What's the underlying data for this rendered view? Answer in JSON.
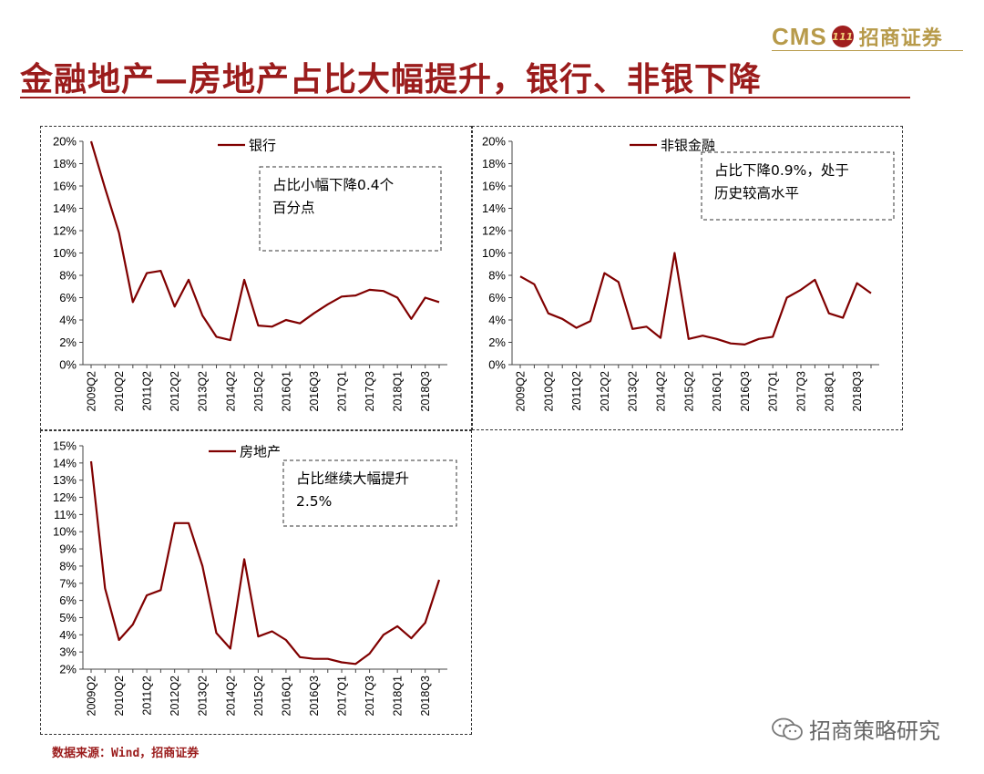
{
  "brand": {
    "cms": "CMS",
    "badge": "111",
    "name": "招商证券"
  },
  "title": "金融地产—房地产占比大幅提升，银行、非银下降",
  "source": "数据来源：Wind，招商证券",
  "watermark": "招商策略研究",
  "colors": {
    "series": "#800000",
    "title": "#9b1c1c",
    "brand_gold": "#b79a4a"
  },
  "chart_data": [
    {
      "type": "line",
      "legend": "银行",
      "annotation": [
        "占比小幅下降0.4个",
        "百分点"
      ],
      "y_ticks": [
        "0%",
        "2%",
        "4%",
        "6%",
        "8%",
        "10%",
        "12%",
        "14%",
        "16%",
        "18%",
        "20%"
      ],
      "ylim": [
        0,
        20
      ],
      "x_tick_labels": [
        "2009Q2",
        "2010Q2",
        "2011Q2",
        "2012Q2",
        "2013Q2",
        "2014Q2",
        "2015Q2",
        "2016Q1",
        "2016Q3",
        "2017Q1",
        "2017Q3",
        "2018Q1",
        "2018Q3"
      ],
      "x": [
        "2009Q2",
        "2009Q4",
        "2010Q2",
        "2010Q4",
        "2011Q2",
        "2011Q4",
        "2012Q2",
        "2012Q4",
        "2013Q2",
        "2013Q4",
        "2014Q2",
        "2014Q4",
        "2015Q2",
        "2015Q4",
        "2016Q1",
        "2016Q2",
        "2016Q3",
        "2016Q4",
        "2017Q1",
        "2017Q2",
        "2017Q3",
        "2017Q4",
        "2018Q1",
        "2018Q2",
        "2018Q3",
        "2018Q4"
      ],
      "values": [
        20.0,
        15.8,
        11.8,
        5.6,
        8.2,
        8.4,
        5.2,
        7.6,
        4.4,
        2.5,
        2.2,
        7.6,
        3.5,
        3.4,
        4.0,
        3.7,
        4.6,
        5.4,
        6.1,
        6.2,
        6.7,
        6.6,
        6.0,
        4.1,
        6.0,
        5.6
      ]
    },
    {
      "type": "line",
      "legend": "非银金融",
      "annotation": [
        "占比下降0.9%，处于",
        "历史较高水平"
      ],
      "y_ticks": [
        "0%",
        "2%",
        "4%",
        "6%",
        "8%",
        "10%",
        "12%",
        "14%",
        "16%",
        "18%",
        "20%"
      ],
      "ylim": [
        0,
        20
      ],
      "x_tick_labels": [
        "2009Q2",
        "2010Q2",
        "2011Q2",
        "2012Q2",
        "2013Q2",
        "2014Q2",
        "2015Q2",
        "2016Q1",
        "2016Q3",
        "2017Q1",
        "2017Q3",
        "2018Q1",
        "2018Q3"
      ],
      "x": [
        "2009Q2",
        "2009Q4",
        "2010Q2",
        "2010Q4",
        "2011Q2",
        "2011Q4",
        "2012Q2",
        "2012Q4",
        "2013Q2",
        "2013Q4",
        "2014Q2",
        "2014Q4",
        "2015Q2",
        "2015Q4",
        "2016Q1",
        "2016Q2",
        "2016Q3",
        "2016Q4",
        "2017Q1",
        "2017Q2",
        "2017Q3",
        "2017Q4",
        "2018Q1",
        "2018Q2",
        "2018Q3",
        "2018Q4"
      ],
      "values": [
        7.9,
        7.2,
        4.6,
        4.1,
        3.3,
        3.9,
        8.2,
        7.4,
        3.2,
        3.4,
        2.4,
        10.0,
        2.3,
        2.6,
        2.3,
        1.9,
        1.8,
        2.3,
        2.5,
        6.0,
        6.7,
        7.6,
        4.6,
        4.2,
        7.3,
        6.4
      ]
    },
    {
      "type": "line",
      "legend": "房地产",
      "annotation": [
        "占比继续大幅提升",
        "2.5%"
      ],
      "y_ticks": [
        "2%",
        "3%",
        "4%",
        "5%",
        "6%",
        "7%",
        "8%",
        "9%",
        "10%",
        "11%",
        "12%",
        "13%",
        "14%",
        "15%"
      ],
      "ylim": [
        2,
        15
      ],
      "x_tick_labels": [
        "2009Q2",
        "2010Q2",
        "2011Q2",
        "2012Q2",
        "2013Q2",
        "2014Q2",
        "2015Q2",
        "2016Q1",
        "2016Q3",
        "2017Q1",
        "2017Q3",
        "2018Q1",
        "2018Q3"
      ],
      "x": [
        "2009Q2",
        "2009Q4",
        "2010Q2",
        "2010Q4",
        "2011Q2",
        "2011Q4",
        "2012Q2",
        "2012Q4",
        "2013Q2",
        "2013Q4",
        "2014Q2",
        "2014Q4",
        "2015Q2",
        "2015Q4",
        "2016Q1",
        "2016Q2",
        "2016Q3",
        "2016Q4",
        "2017Q1",
        "2017Q2",
        "2017Q3",
        "2017Q4",
        "2018Q1",
        "2018Q2",
        "2018Q3",
        "2018Q4"
      ],
      "values": [
        14.1,
        6.7,
        3.7,
        4.6,
        6.3,
        6.6,
        10.5,
        10.5,
        8.0,
        4.1,
        3.2,
        8.4,
        3.9,
        4.2,
        3.7,
        2.7,
        2.6,
        2.6,
        2.4,
        2.3,
        2.9,
        4.0,
        4.5,
        3.8,
        4.7,
        7.2
      ]
    }
  ]
}
